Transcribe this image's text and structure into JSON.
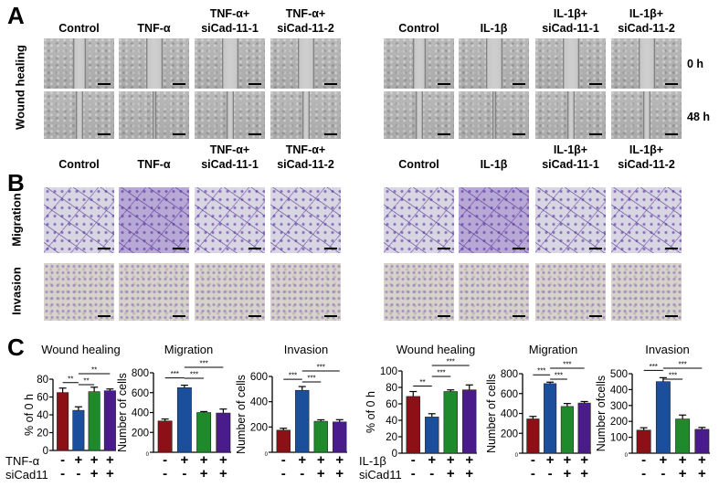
{
  "panel_A": {
    "letter": "A",
    "row_label": "Wound healing",
    "left_columns": [
      "Control",
      "TNF-α",
      "TNF-α+\nsiCad-11-1",
      "TNF-α+\nsiCad-11-2"
    ],
    "right_columns": [
      "Control",
      "IL-1β",
      "IL-1β+\nsiCad-11-1",
      "IL-1β+\nsiCad-11-2"
    ],
    "time_labels": [
      "0 h",
      "48 h"
    ]
  },
  "panel_B": {
    "letter": "B",
    "left_columns": [
      "Control",
      "TNF-α",
      "TNF-α+\nsiCad-11-1",
      "TNF-α+\nsiCad-11-2"
    ],
    "right_columns": [
      "Control",
      "IL-1β",
      "IL-1β+\nsiCad-11-1",
      "IL-1β+\nsiCad-11-2"
    ],
    "row_labels": [
      "Migration",
      "Invasion"
    ]
  },
  "panel_C": {
    "letter": "C",
    "condition_labels_left": [
      "TNF-α",
      "siCad11"
    ],
    "condition_labels_right": [
      "IL-1β",
      "siCad11"
    ]
  },
  "colors": {
    "bar1": "#8c1016",
    "bar2": "#1b4f9b",
    "bar3": "#1f8a2b",
    "bar4": "#4a1b8a"
  },
  "chart_data": [
    {
      "type": "bar",
      "title": "Wound healing",
      "ylabel": "% of 0 h",
      "ylim": [
        0,
        80
      ],
      "ticks": [
        0,
        20,
        40,
        60,
        80
      ],
      "conditions": [
        [
          "-",
          "+",
          "+",
          "+"
        ],
        [
          "-",
          "-",
          "+",
          "+"
        ]
      ],
      "values": [
        65,
        45,
        66,
        67
      ],
      "errors": [
        5,
        4,
        5,
        2
      ],
      "significance": [
        {
          "pair": [
            0,
            1
          ],
          "label": "**"
        },
        {
          "pair": [
            1,
            2
          ],
          "label": "**"
        },
        {
          "pair": [
            1,
            3
          ],
          "label": "**"
        }
      ]
    },
    {
      "type": "bar",
      "title": "Migration",
      "ylabel": "Number of cells",
      "ylim": [
        0,
        800
      ],
      "ticks": [
        0,
        200,
        400,
        600,
        800
      ],
      "conditions": [
        [
          "-",
          "+",
          "+",
          "+"
        ],
        [
          "-",
          "-",
          "+",
          "+"
        ]
      ],
      "values": [
        315,
        650,
        400,
        395
      ],
      "errors": [
        20,
        25,
        10,
        40
      ],
      "significance": [
        {
          "pair": [
            0,
            1
          ],
          "label": "***"
        },
        {
          "pair": [
            1,
            2
          ],
          "label": "***"
        },
        {
          "pair": [
            1,
            3
          ],
          "label": "***"
        }
      ]
    },
    {
      "type": "bar",
      "title": "Invasion",
      "ylabel": "Number of cells",
      "ylim": [
        0,
        600
      ],
      "ticks": [
        0,
        200,
        400,
        600
      ],
      "conditions": [
        [
          "-",
          "+",
          "+",
          "+"
        ],
        [
          "-",
          "-",
          "+",
          "+"
        ]
      ],
      "values": [
        175,
        490,
        245,
        240
      ],
      "errors": [
        15,
        30,
        12,
        18
      ],
      "significance": [
        {
          "pair": [
            0,
            1
          ],
          "label": "***"
        },
        {
          "pair": [
            1,
            2
          ],
          "label": "***"
        },
        {
          "pair": [
            1,
            3
          ],
          "label": "***"
        }
      ]
    },
    {
      "type": "bar",
      "title": "Wound healing",
      "ylabel": "% of 0 h",
      "ylim": [
        0,
        100
      ],
      "ticks": [
        0,
        20,
        40,
        60,
        80,
        100
      ],
      "conditions": [
        [
          "-",
          "+",
          "+",
          "+"
        ],
        [
          "-",
          "-",
          "+",
          "+"
        ]
      ],
      "values": [
        69,
        44,
        75,
        77
      ],
      "errors": [
        6,
        4,
        2,
        6
      ],
      "significance": [
        {
          "pair": [
            0,
            1
          ],
          "label": "**"
        },
        {
          "pair": [
            1,
            2
          ],
          "label": "***"
        },
        {
          "pair": [
            1,
            3
          ],
          "label": "***"
        }
      ]
    },
    {
      "type": "bar",
      "title": "Migration",
      "ylabel": "Number of cells",
      "ylim": [
        0,
        800
      ],
      "ticks": [
        0,
        200,
        400,
        600,
        800
      ],
      "conditions": [
        [
          "-",
          "+",
          "+",
          "+"
        ],
        [
          "-",
          "-",
          "+",
          "+"
        ]
      ],
      "values": [
        345,
        700,
        470,
        505
      ],
      "errors": [
        25,
        15,
        30,
        15
      ],
      "significance": [
        {
          "pair": [
            0,
            1
          ],
          "label": "***"
        },
        {
          "pair": [
            1,
            2
          ],
          "label": "***"
        },
        {
          "pair": [
            1,
            3
          ],
          "label": "***"
        }
      ]
    },
    {
      "type": "bar",
      "title": "Invasion",
      "ylabel": "Number ofcells",
      "ylim": [
        0,
        500
      ],
      "ticks": [
        0,
        100,
        200,
        300,
        400,
        500
      ],
      "conditions": [
        [
          "-",
          "+",
          "+",
          "+"
        ],
        [
          "-",
          "-",
          "+",
          "+"
        ]
      ],
      "values": [
        145,
        450,
        215,
        150
      ],
      "errors": [
        15,
        25,
        25,
        12
      ],
      "significance": [
        {
          "pair": [
            0,
            1
          ],
          "label": "***"
        },
        {
          "pair": [
            1,
            2
          ],
          "label": "***"
        },
        {
          "pair": [
            1,
            3
          ],
          "label": "***"
        }
      ]
    }
  ]
}
